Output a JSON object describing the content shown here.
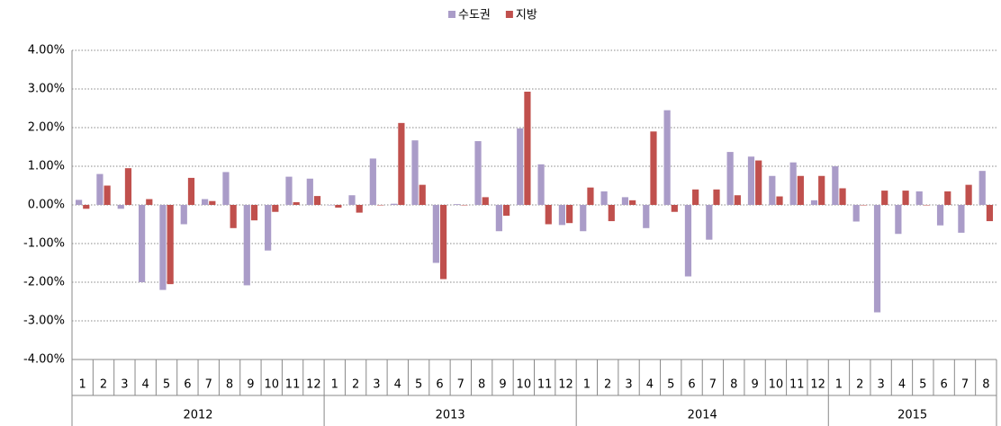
{
  "chart_data": {
    "type": "bar",
    "categories": [
      "1",
      "2",
      "3",
      "4",
      "5",
      "6",
      "7",
      "8",
      "9",
      "10",
      "11",
      "12",
      "1",
      "2",
      "3",
      "4",
      "5",
      "6",
      "7",
      "8",
      "9",
      "10",
      "11",
      "12",
      "1",
      "2",
      "3",
      "4",
      "5",
      "6",
      "7",
      "8",
      "9",
      "10",
      "11",
      "12",
      "1",
      "2",
      "3",
      "4",
      "5",
      "6",
      "7",
      "8"
    ],
    "years": [
      "2012",
      "2013",
      "2014",
      "2015"
    ],
    "series": [
      {
        "name": "수도권",
        "color": "#aa9cc8",
        "values": [
          0.13,
          0.8,
          -0.1,
          -2.0,
          -2.2,
          -0.5,
          0.15,
          0.85,
          -2.08,
          -1.18,
          0.73,
          0.68,
          0.0,
          0.25,
          1.2,
          0.03,
          1.67,
          -1.5,
          0.02,
          1.65,
          -0.68,
          1.98,
          1.05,
          -0.52,
          -0.68,
          0.35,
          0.2,
          -0.6,
          2.45,
          -1.85,
          -0.9,
          1.37,
          1.25,
          0.75,
          1.1,
          0.12,
          1.0,
          -0.43,
          -2.78,
          -0.75,
          0.35,
          -0.53,
          -0.72,
          0.88
        ]
      },
      {
        "name": "지방",
        "color": "#c0504d",
        "values": [
          -0.1,
          0.5,
          0.95,
          0.15,
          -2.05,
          0.7,
          0.1,
          -0.6,
          -0.4,
          -0.18,
          0.07,
          0.23,
          -0.07,
          -0.2,
          0.0,
          2.12,
          0.52,
          -1.92,
          0.0,
          0.2,
          -0.28,
          2.93,
          -0.5,
          -0.47,
          0.45,
          -0.42,
          0.12,
          1.9,
          -0.18,
          0.4,
          0.4,
          0.25,
          1.15,
          0.22,
          0.75,
          0.75,
          0.43,
          0.0,
          0.37,
          0.37,
          0.0,
          0.35,
          0.52,
          -0.42
        ]
      }
    ],
    "ylim": [
      -4,
      4
    ],
    "yticks": [
      {
        "value": -4,
        "label": "-4.00%"
      },
      {
        "value": -3,
        "label": "-3.00%"
      },
      {
        "value": -2,
        "label": "-2.00%"
      },
      {
        "value": -1,
        "label": "-1.00%"
      },
      {
        "value": 0,
        "label": "0.00%"
      },
      {
        "value": 1,
        "label": "1.00%"
      },
      {
        "value": 2,
        "label": "2.00%"
      },
      {
        "value": 3,
        "label": "3.00%"
      },
      {
        "value": 4,
        "label": "4.00%"
      }
    ],
    "grid": true,
    "legend": "top"
  }
}
